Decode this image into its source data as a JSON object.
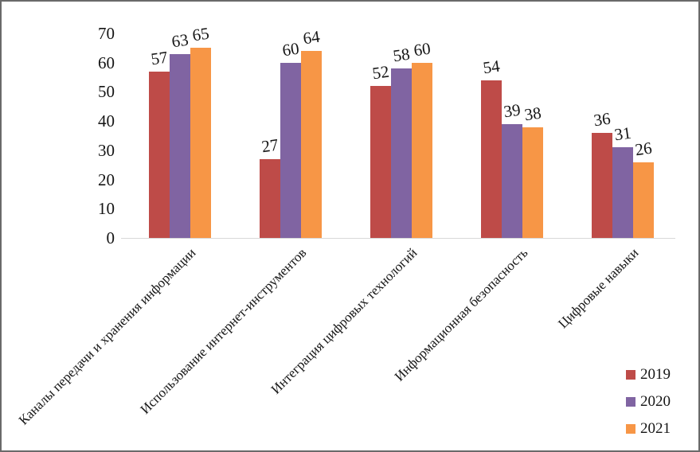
{
  "frame": {
    "background": "#ffffff",
    "border_color": "#6a6a6a"
  },
  "chart_data": {
    "type": "bar",
    "title": "",
    "xlabel": "",
    "ylabel": "",
    "categories": [
      "Каналы передачи и хранения информации",
      "Использование интернет-инструментов",
      "Интеграция цифровых технологий",
      "Информационная безопасность",
      "Цифровые навыки"
    ],
    "series": [
      {
        "name": "2019",
        "color": "#be4b48",
        "values": [
          57,
          27,
          52,
          54,
          36
        ]
      },
      {
        "name": "2020",
        "color": "#8064a2",
        "values": [
          63,
          60,
          58,
          39,
          31
        ]
      },
      {
        "name": "2021",
        "color": "#f79646",
        "values": [
          65,
          64,
          60,
          38,
          26
        ]
      }
    ],
    "ylim": [
      0,
      70
    ],
    "yticks": [
      0,
      10,
      20,
      30,
      40,
      50,
      60,
      70
    ],
    "grid": false,
    "value_labels_shown": true,
    "legend_position": "bottom-right",
    "axis_line_color": "#d9d9d9",
    "category_label_rotation_deg": 45
  }
}
